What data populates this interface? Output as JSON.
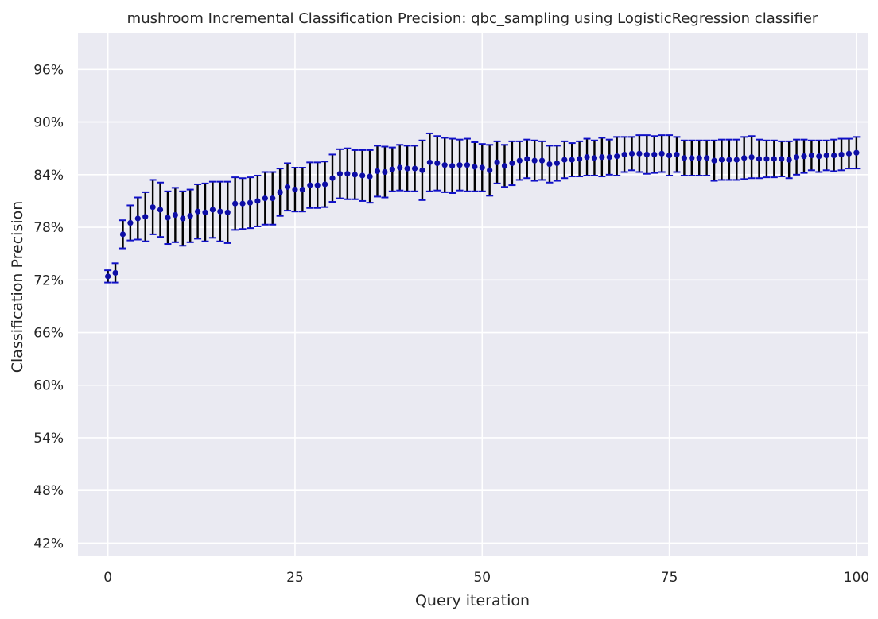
{
  "chart_data": {
    "type": "scatter",
    "title": "mushroom Incremental Classification Precision: qbc_sampling using LogisticRegression classifier",
    "xlabel": "Query iteration",
    "ylabel": "Classification Precision",
    "xlim": [
      -4,
      101.5
    ],
    "ylim": [
      40.5,
      100.2
    ],
    "x_ticks": [
      0,
      25,
      50,
      75,
      100
    ],
    "y_ticks": [
      42,
      48,
      54,
      60,
      66,
      72,
      78,
      84,
      90,
      96
    ],
    "y_tick_format": "percent",
    "grid": true,
    "legend": "none",
    "colors": {
      "background": "#eaeaf2",
      "grid": "#ffffff",
      "marker": "#0d0da6",
      "errorbar": "#000000",
      "errorcap": "#1010c8",
      "text": "#262626"
    },
    "series": [
      {
        "x": [
          0,
          1,
          2,
          3,
          4,
          5,
          6,
          7,
          8,
          9,
          10,
          11,
          12,
          13,
          14,
          15,
          16,
          17,
          18,
          19,
          20,
          21,
          22,
          23,
          24,
          25,
          26,
          27,
          28,
          29,
          30,
          31,
          32,
          33,
          34,
          35,
          36,
          37,
          38,
          39,
          40,
          41,
          42,
          43,
          44,
          45,
          46,
          47,
          48,
          49,
          50,
          51,
          52,
          53,
          54,
          55,
          56,
          57,
          58,
          59,
          60,
          61,
          62,
          63,
          64,
          65,
          66,
          67,
          68,
          69,
          70,
          71,
          72,
          73,
          74,
          75,
          76,
          77,
          78,
          79,
          80,
          81,
          82,
          83,
          84,
          85,
          86,
          87,
          88,
          89,
          90,
          91,
          92,
          93,
          94,
          95,
          96,
          97,
          98,
          99,
          100
        ],
        "y": [
          72.4,
          72.8,
          77.2,
          78.5,
          79.0,
          79.2,
          80.3,
          80.0,
          79.1,
          79.4,
          79.0,
          79.3,
          79.8,
          79.7,
          80.0,
          79.8,
          79.7,
          80.7,
          80.7,
          80.8,
          81.0,
          81.3,
          81.3,
          82.0,
          82.6,
          82.3,
          82.3,
          82.8,
          82.8,
          82.9,
          83.6,
          84.1,
          84.1,
          84.0,
          83.9,
          83.8,
          84.4,
          84.3,
          84.6,
          84.8,
          84.7,
          84.7,
          84.5,
          85.4,
          85.3,
          85.1,
          85.0,
          85.1,
          85.1,
          84.9,
          84.8,
          84.5,
          85.4,
          85.0,
          85.3,
          85.6,
          85.8,
          85.6,
          85.6,
          85.2,
          85.3,
          85.7,
          85.7,
          85.8,
          86.0,
          85.9,
          86.0,
          86.0,
          86.1,
          86.3,
          86.4,
          86.4,
          86.3,
          86.3,
          86.4,
          86.2,
          86.3,
          85.9,
          85.9,
          85.9,
          85.9,
          85.6,
          85.7,
          85.7,
          85.7,
          85.9,
          86.0,
          85.8,
          85.8,
          85.8,
          85.8,
          85.7,
          86.0,
          86.1,
          86.2,
          86.1,
          86.2,
          86.2,
          86.3,
          86.4,
          86.5
        ],
        "err": [
          0.7,
          1.1,
          1.6,
          2.0,
          2.4,
          2.8,
          3.1,
          3.1,
          3.0,
          3.1,
          3.1,
          3.0,
          3.1,
          3.3,
          3.2,
          3.4,
          3.5,
          3.0,
          2.9,
          2.9,
          2.9,
          3.0,
          3.0,
          2.7,
          2.7,
          2.5,
          2.5,
          2.6,
          2.6,
          2.6,
          2.7,
          2.8,
          2.9,
          2.8,
          2.9,
          3.0,
          2.9,
          2.9,
          2.5,
          2.6,
          2.6,
          2.6,
          3.4,
          3.3,
          3.1,
          3.1,
          3.1,
          2.9,
          3.0,
          2.8,
          2.7,
          2.9,
          2.4,
          2.4,
          2.5,
          2.2,
          2.2,
          2.3,
          2.2,
          2.1,
          2.0,
          2.1,
          1.9,
          2.0,
          2.1,
          2.0,
          2.2,
          2.0,
          2.2,
          2.0,
          1.9,
          2.1,
          2.2,
          2.1,
          2.1,
          2.3,
          2.0,
          2.0,
          2.0,
          2.0,
          2.0,
          2.3,
          2.3,
          2.3,
          2.3,
          2.4,
          2.4,
          2.2,
          2.1,
          2.1,
          2.0,
          2.1,
          2.0,
          1.9,
          1.7,
          1.8,
          1.7,
          1.8,
          1.8,
          1.7,
          1.8
        ]
      }
    ]
  }
}
